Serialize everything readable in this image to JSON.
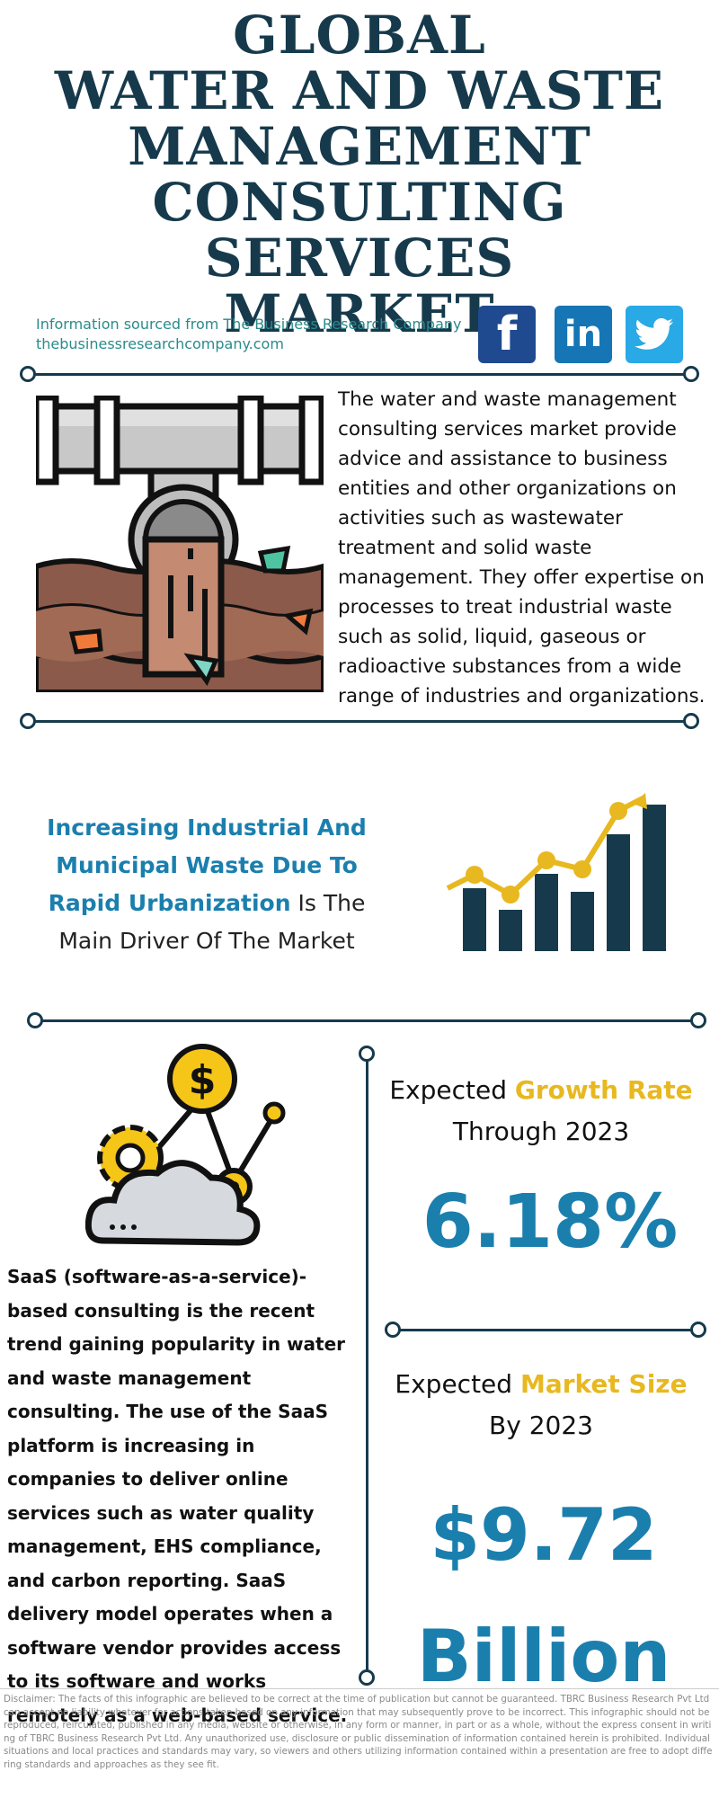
{
  "header": {
    "title_lines": [
      "GLOBAL",
      "WATER AND WASTE",
      "MANAGEMENT",
      "CONSULTING SERVICES",
      "MARKET"
    ],
    "source_line": "Information sourced from The Business Research Company",
    "source_url": "thebusinessresearchcompany.com"
  },
  "social": {
    "facebook_glyph": "f",
    "linkedin_glyph": "in"
  },
  "intro": {
    "description": "The water and waste management consulting services market provide advice and assistance to business entities and other organizations on activities such as wastewater treatment and solid waste management. They offer expertise on processes to treat industrial waste such as solid, liquid, gaseous or radioactive substances from a wide range of industries and organizations."
  },
  "driver": {
    "highlight": "Increasing Industrial And Municipal Waste Due To Rapid Urbanization",
    "rest": " Is The Main Driver Of The Market"
  },
  "trend": {
    "text": "SaaS (software-as-a-service)-based consulting is the recent trend gaining popularity in water and waste management consulting. The use of the SaaS platform is increasing in companies to deliver online services such as water quality management, EHS compliance, and carbon reporting. SaaS delivery model operates when a software vendor provides access to its software and works remotely as a web-based service."
  },
  "growth": {
    "prefix": "Expected ",
    "highlight": "Growth Rate",
    "line2": "Through 2023",
    "value": "6.18%"
  },
  "market_size": {
    "prefix": "Expected ",
    "highlight": "Market Size",
    "line2": "By 2023",
    "value_line1": "$9.72",
    "value_line2": "Billion"
  },
  "disclaimer": "Disclaimer: The facts of this infographic are believed to be correct at the time of publication but cannot be guaranteed. TBRC Business Research Pvt Ltd can accept no liability whatever for actions taken based on any information that may subsequently prove to be incorrect. This infographic should not be reproduced, reirculated, published in any media, website or otherwise, in any form or manner, in part or as a whole, without the express consent in writing of TBRC Business Research Pvt Ltd. Any unauthorized use, disclosure or public dissemination of information contained herein is prohibited. Individual situations and local practices and standards may vary, so viewers and others utilizing information contained within a presentation are free to adopt differing standards and approaches as they see fit.",
  "colors": {
    "navy": "#163a4c",
    "blue": "#1b7fae",
    "yellow": "#e8b820",
    "teal": "#2a8b8b"
  },
  "icons": [
    "pipe-wastewater-icon",
    "growth-chart-icon",
    "cloud-gear-dollar-icon",
    "facebook-icon",
    "linkedin-icon",
    "twitter-icon"
  ]
}
